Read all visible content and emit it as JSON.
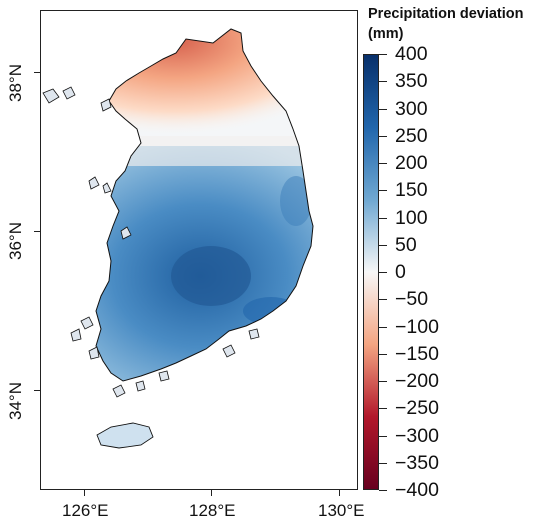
{
  "legend": {
    "title_line1": "Precipitation deviation",
    "title_line2": "(mm)",
    "labels": [
      "400",
      "350",
      "300",
      "250",
      "200",
      "150",
      "100",
      "50",
      "0",
      "−50",
      "−100",
      "−150",
      "−200",
      "−250",
      "−300",
      "−350",
      "−400"
    ]
  },
  "axes": {
    "y_labels": [
      "38°N",
      "36°N",
      "34°N"
    ],
    "x_labels": [
      "126°E",
      "128°E",
      "130°E"
    ]
  },
  "colors": {
    "max": "#08306b",
    "high": "#2166ac",
    "mid_high": "#6fa8d2",
    "zero": "#f7f7f7",
    "mid_low": "#f4a582",
    "low": "#b2182b",
    "min": "#67001f"
  }
}
